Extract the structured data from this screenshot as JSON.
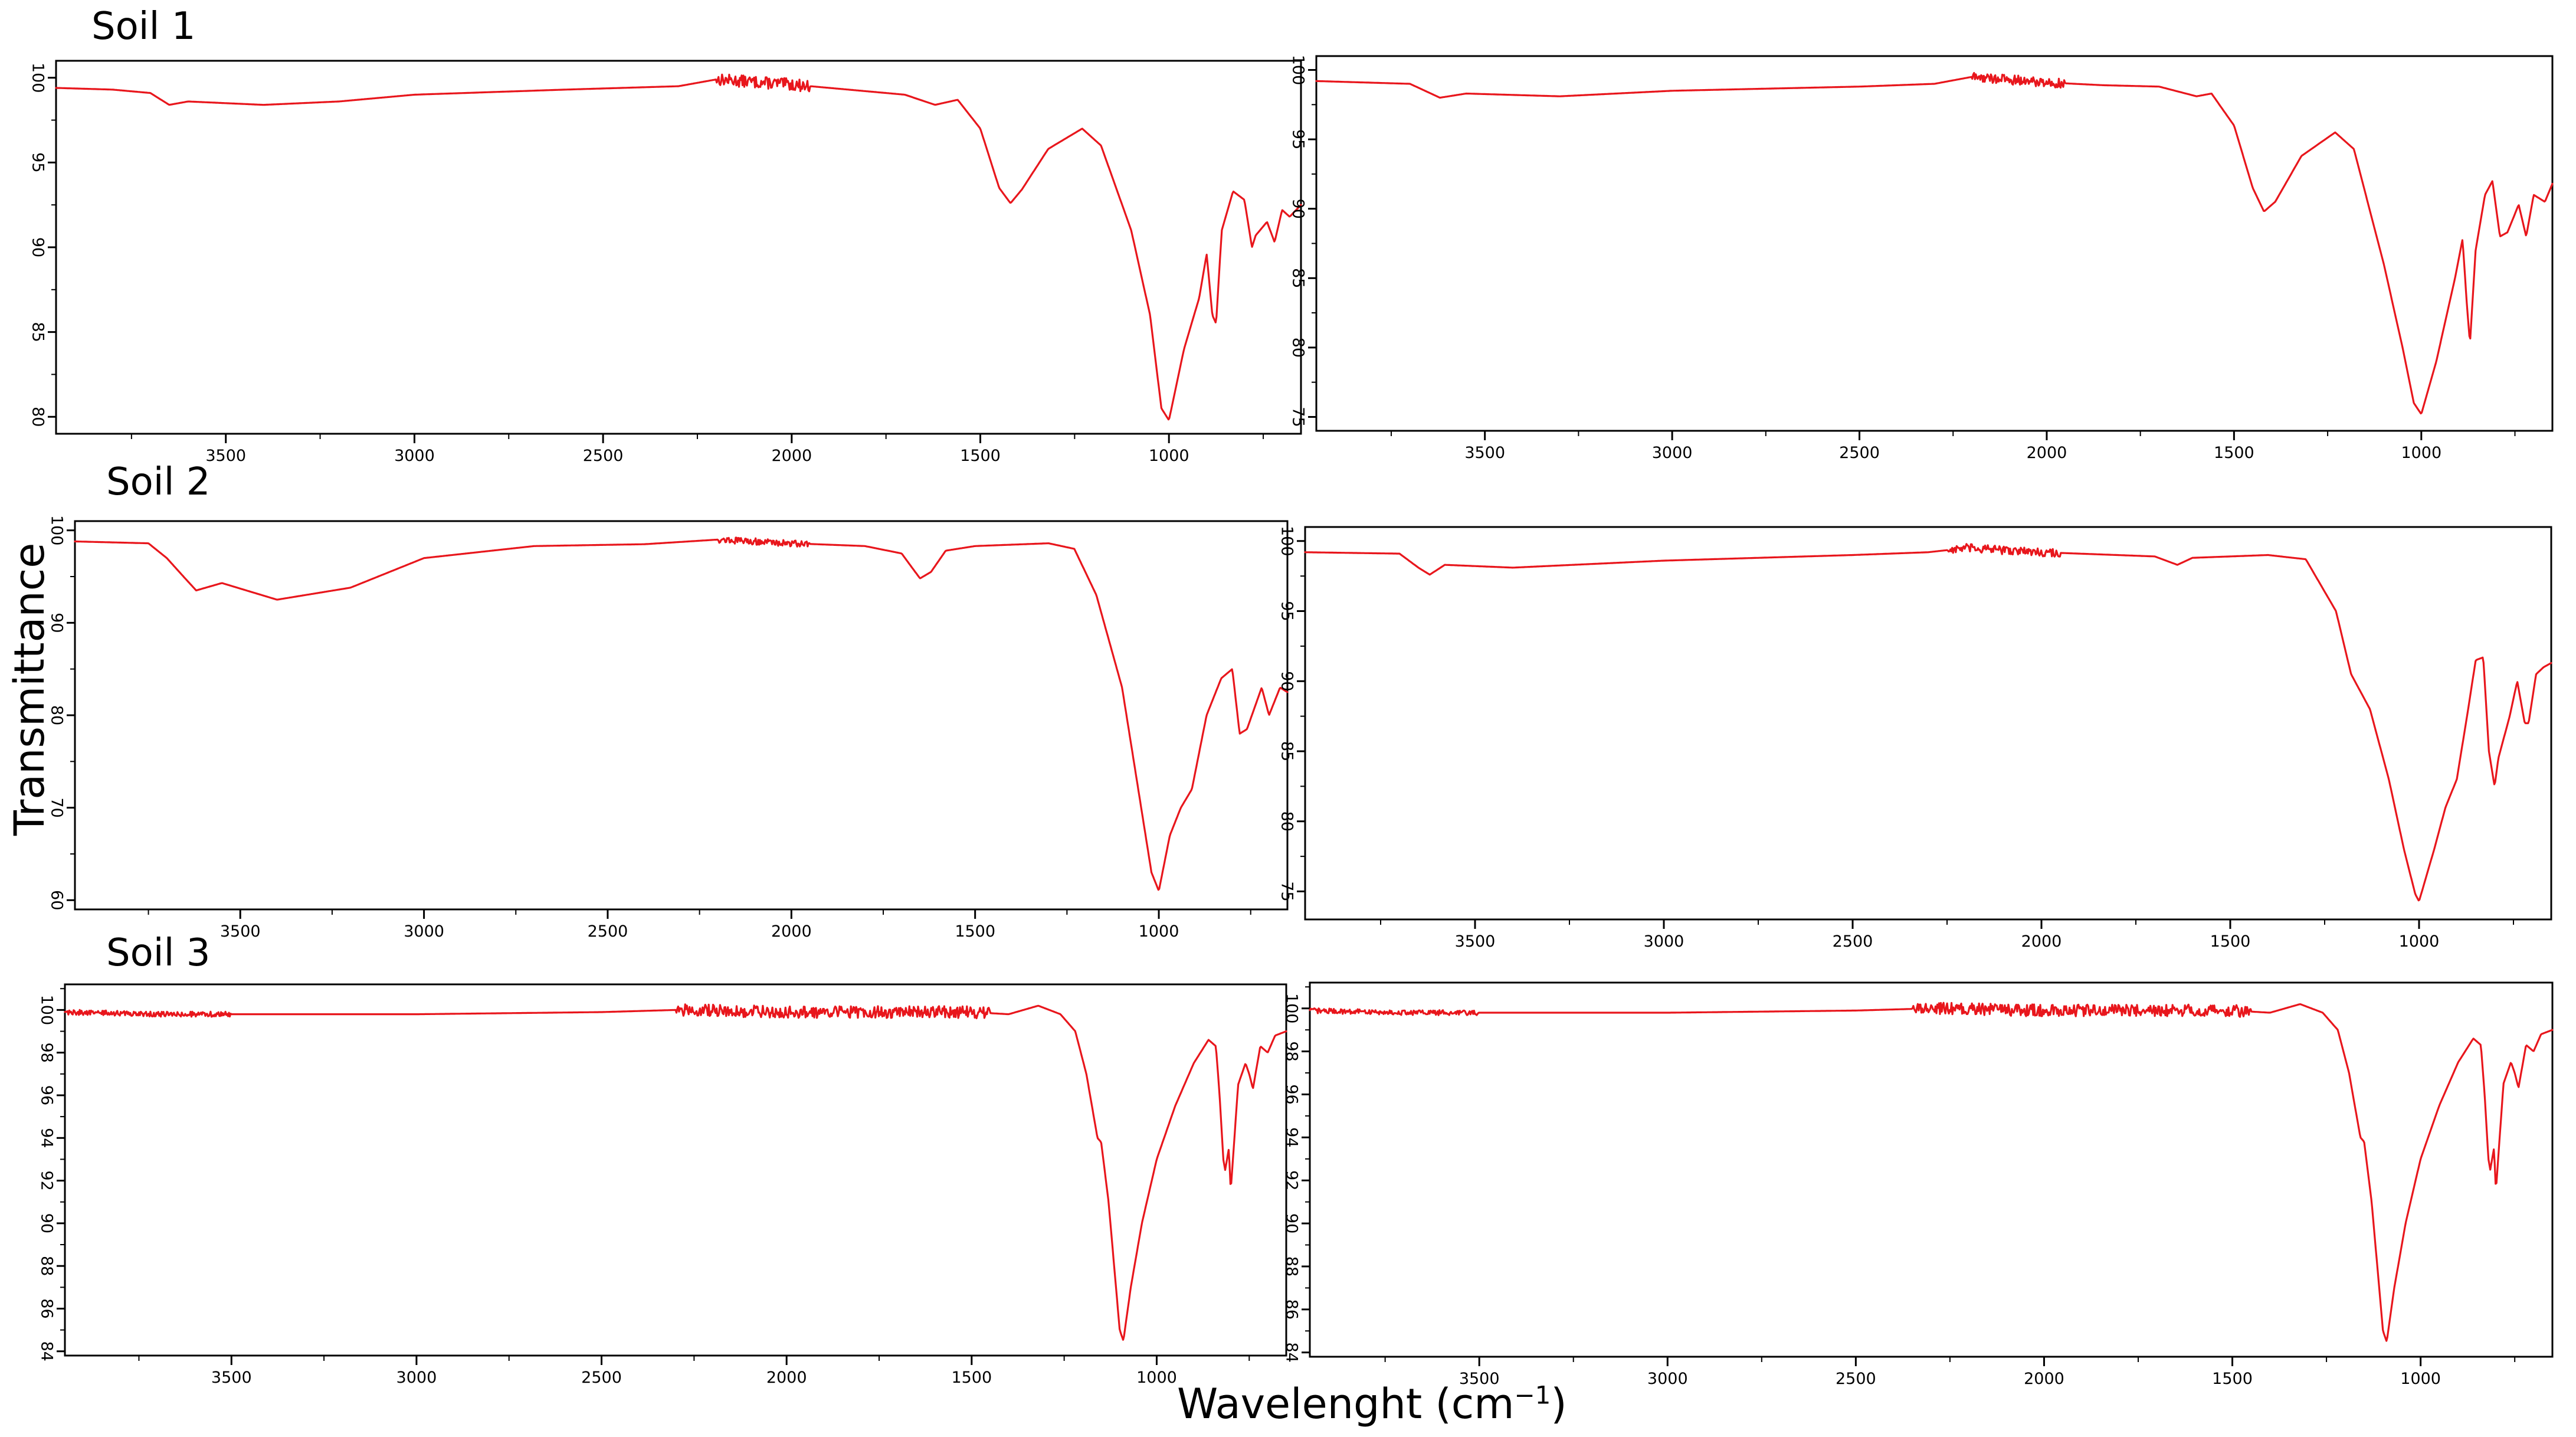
{
  "figure": {
    "y_axis_title": "Transmittance",
    "x_axis_title_main": "Wavelenght (cm",
    "x_axis_title_sup": "−1",
    "x_axis_title_close": ")",
    "row_labels": [
      "Soil 1",
      "Soil 2",
      "Soil 3"
    ]
  },
  "colors": {
    "trace": "#e8161c",
    "axis": "#000000",
    "background": "#ffffff"
  },
  "chart_data": [
    {
      "type": "line",
      "row": "Soil 1",
      "xlim": [
        3950,
        650
      ],
      "ylim": [
        79,
        101
      ],
      "xticks": [
        3500,
        3000,
        2500,
        2000,
        1500,
        1000
      ],
      "yticks": [
        80,
        85,
        90,
        95,
        100
      ],
      "grid": false,
      "noise": [
        [
          1,
          2200,
          1950,
          0.35
        ]
      ],
      "points": [
        [
          3950,
          99.4
        ],
        [
          3800,
          99.3
        ],
        [
          3700,
          99.1
        ],
        [
          3650,
          98.4
        ],
        [
          3600,
          98.6
        ],
        [
          3400,
          98.4
        ],
        [
          3200,
          98.6
        ],
        [
          3000,
          99.0
        ],
        [
          2600,
          99.3
        ],
        [
          2300,
          99.5
        ],
        [
          2200,
          99.9
        ],
        [
          2000,
          99.6
        ],
        [
          1850,
          99.3
        ],
        [
          1700,
          99.0
        ],
        [
          1620,
          98.4
        ],
        [
          1560,
          98.7
        ],
        [
          1500,
          97.0
        ],
        [
          1450,
          93.5
        ],
        [
          1420,
          92.6
        ],
        [
          1390,
          93.4
        ],
        [
          1320,
          95.8
        ],
        [
          1230,
          97.0
        ],
        [
          1180,
          96.0
        ],
        [
          1100,
          91.0
        ],
        [
          1050,
          86.0
        ],
        [
          1020,
          80.5
        ],
        [
          1000,
          79.8
        ],
        [
          960,
          84.0
        ],
        [
          920,
          87.0
        ],
        [
          900,
          89.6
        ],
        [
          885,
          86.0
        ],
        [
          875,
          85.5
        ],
        [
          860,
          91.0
        ],
        [
          830,
          93.3
        ],
        [
          800,
          92.8
        ],
        [
          780,
          90.0
        ],
        [
          770,
          90.7
        ],
        [
          740,
          91.5
        ],
        [
          720,
          90.3
        ],
        [
          700,
          92.2
        ],
        [
          680,
          91.8
        ],
        [
          650,
          92.5
        ]
      ]
    },
    {
      "type": "line",
      "row": "Soil 1",
      "xlim": [
        3950,
        650
      ],
      "ylim": [
        74,
        101
      ],
      "xticks": [
        3500,
        3000,
        2500,
        2000,
        1500,
        1000
      ],
      "yticks": [
        75,
        80,
        85,
        90,
        95,
        100
      ],
      "grid": false,
      "noise": [
        [
          1,
          2200,
          1950,
          0.35
        ]
      ],
      "points": [
        [
          3950,
          99.2
        ],
        [
          3700,
          99.0
        ],
        [
          3620,
          98.0
        ],
        [
          3550,
          98.3
        ],
        [
          3300,
          98.1
        ],
        [
          3000,
          98.5
        ],
        [
          2500,
          98.8
        ],
        [
          2300,
          99.0
        ],
        [
          2200,
          99.5
        ],
        [
          2000,
          99.1
        ],
        [
          1850,
          98.9
        ],
        [
          1700,
          98.8
        ],
        [
          1600,
          98.1
        ],
        [
          1560,
          98.3
        ],
        [
          1500,
          96.0
        ],
        [
          1450,
          91.5
        ],
        [
          1420,
          89.8
        ],
        [
          1390,
          90.5
        ],
        [
          1320,
          93.8
        ],
        [
          1230,
          95.5
        ],
        [
          1180,
          94.3
        ],
        [
          1100,
          86.0
        ],
        [
          1050,
          80.0
        ],
        [
          1020,
          76.0
        ],
        [
          1000,
          75.2
        ],
        [
          960,
          79.0
        ],
        [
          910,
          85.0
        ],
        [
          890,
          87.8
        ],
        [
          878,
          83.0
        ],
        [
          870,
          80.3
        ],
        [
          855,
          87.0
        ],
        [
          830,
          91.0
        ],
        [
          810,
          92.0
        ],
        [
          790,
          88.0
        ],
        [
          770,
          88.3
        ],
        [
          740,
          90.3
        ],
        [
          720,
          88.0
        ],
        [
          700,
          91.0
        ],
        [
          670,
          90.5
        ],
        [
          650,
          91.8
        ]
      ]
    },
    {
      "type": "line",
      "row": "Soil 2",
      "xlim": [
        3950,
        650
      ],
      "ylim": [
        59,
        101
      ],
      "xticks": [
        3500,
        3000,
        2500,
        2000,
        1500,
        1000
      ],
      "yticks": [
        60,
        70,
        80,
        90,
        100
      ],
      "grid": false,
      "noise": [
        [
          1,
          2200,
          1950,
          0.35
        ]
      ],
      "points": [
        [
          3950,
          98.8
        ],
        [
          3750,
          98.6
        ],
        [
          3700,
          97.0
        ],
        [
          3650,
          94.8
        ],
        [
          3620,
          93.5
        ],
        [
          3550,
          94.3
        ],
        [
          3400,
          92.5
        ],
        [
          3200,
          93.8
        ],
        [
          3000,
          97.0
        ],
        [
          2700,
          98.3
        ],
        [
          2400,
          98.5
        ],
        [
          2200,
          99.0
        ],
        [
          2000,
          98.6
        ],
        [
          1800,
          98.3
        ],
        [
          1700,
          97.5
        ],
        [
          1650,
          94.8
        ],
        [
          1620,
          95.5
        ],
        [
          1580,
          97.8
        ],
        [
          1500,
          98.3
        ],
        [
          1300,
          98.6
        ],
        [
          1230,
          98.0
        ],
        [
          1170,
          93.0
        ],
        [
          1100,
          83.0
        ],
        [
          1060,
          73.0
        ],
        [
          1020,
          63.0
        ],
        [
          1000,
          61.0
        ],
        [
          970,
          67.0
        ],
        [
          940,
          70.0
        ],
        [
          910,
          72.0
        ],
        [
          870,
          80.0
        ],
        [
          830,
          84.0
        ],
        [
          800,
          85.0
        ],
        [
          780,
          78.0
        ],
        [
          760,
          78.5
        ],
        [
          720,
          83.0
        ],
        [
          700,
          80.0
        ],
        [
          670,
          83.0
        ],
        [
          650,
          82.5
        ]
      ]
    },
    {
      "type": "line",
      "row": "Soil 2",
      "xlim": [
        3950,
        650
      ],
      "ylim": [
        73,
        101
      ],
      "xticks": [
        3500,
        3000,
        2500,
        2000,
        1500,
        1000
      ],
      "yticks": [
        75,
        80,
        85,
        90,
        95,
        100
      ],
      "grid": false,
      "noise": [
        [
          1,
          2250,
          1950,
          0.3
        ]
      ],
      "points": [
        [
          3950,
          99.2
        ],
        [
          3700,
          99.1
        ],
        [
          3650,
          98.1
        ],
        [
          3620,
          97.6
        ],
        [
          3580,
          98.3
        ],
        [
          3400,
          98.1
        ],
        [
          3000,
          98.6
        ],
        [
          2500,
          99.0
        ],
        [
          2300,
          99.2
        ],
        [
          2200,
          99.5
        ],
        [
          2000,
          99.2
        ],
        [
          1800,
          99.0
        ],
        [
          1700,
          98.9
        ],
        [
          1640,
          98.3
        ],
        [
          1600,
          98.8
        ],
        [
          1400,
          99.0
        ],
        [
          1300,
          98.7
        ],
        [
          1220,
          95.0
        ],
        [
          1180,
          90.5
        ],
        [
          1130,
          88.0
        ],
        [
          1080,
          83.0
        ],
        [
          1040,
          78.0
        ],
        [
          1010,
          74.8
        ],
        [
          1000,
          74.3
        ],
        [
          960,
          78.0
        ],
        [
          930,
          81.0
        ],
        [
          900,
          83.0
        ],
        [
          870,
          88.0
        ],
        [
          850,
          91.5
        ],
        [
          830,
          91.7
        ],
        [
          815,
          85.0
        ],
        [
          800,
          82.5
        ],
        [
          790,
          84.5
        ],
        [
          760,
          87.5
        ],
        [
          740,
          90.0
        ],
        [
          720,
          87.0
        ],
        [
          710,
          87.0
        ],
        [
          690,
          90.5
        ],
        [
          670,
          91.0
        ],
        [
          650,
          91.3
        ]
      ]
    },
    {
      "type": "line",
      "row": "Soil 3",
      "xlim": [
        3950,
        650
      ],
      "ylim": [
        83.8,
        101.2
      ],
      "xticks": [
        3500,
        3000,
        2500,
        2000,
        1500,
        1000
      ],
      "yticks": [
        84,
        86,
        88,
        90,
        92,
        94,
        96,
        98,
        100
      ],
      "grid": false,
      "noise": [
        [
          1,
          3950,
          3500,
          0.12
        ],
        [
          2,
          2300,
          1450,
          0.28
        ]
      ],
      "points": [
        [
          3950,
          99.9
        ],
        [
          3700,
          99.8
        ],
        [
          3500,
          99.8
        ],
        [
          3000,
          99.8
        ],
        [
          2500,
          99.9
        ],
        [
          2300,
          100.0
        ],
        [
          2000,
          99.9
        ],
        [
          1500,
          99.9
        ],
        [
          1400,
          99.8
        ],
        [
          1320,
          100.2
        ],
        [
          1260,
          99.8
        ],
        [
          1220,
          99.0
        ],
        [
          1190,
          97.0
        ],
        [
          1170,
          95.0
        ],
        [
          1160,
          94.0
        ],
        [
          1150,
          93.8
        ],
        [
          1130,
          91.0
        ],
        [
          1100,
          85.0
        ],
        [
          1090,
          84.5
        ],
        [
          1070,
          87.0
        ],
        [
          1040,
          90.0
        ],
        [
          1000,
          93.0
        ],
        [
          950,
          95.5
        ],
        [
          900,
          97.5
        ],
        [
          860,
          98.6
        ],
        [
          840,
          98.3
        ],
        [
          830,
          96.0
        ],
        [
          820,
          93.0
        ],
        [
          815,
          92.5
        ],
        [
          805,
          93.5
        ],
        [
          800,
          91.5
        ],
        [
          790,
          94.0
        ],
        [
          780,
          96.5
        ],
        [
          760,
          97.5
        ],
        [
          750,
          97.0
        ],
        [
          740,
          96.3
        ],
        [
          720,
          98.3
        ],
        [
          700,
          98.0
        ],
        [
          680,
          98.8
        ],
        [
          650,
          99.0
        ]
      ]
    },
    {
      "type": "line",
      "row": "Soil 3",
      "xlim": [
        3950,
        650
      ],
      "ylim": [
        83.8,
        101.2
      ],
      "xticks": [
        3500,
        3000,
        2500,
        2000,
        1500,
        1000
      ],
      "yticks": [
        84,
        86,
        88,
        90,
        92,
        94,
        96,
        98,
        100
      ],
      "grid": false,
      "noise": [
        [
          1,
          3950,
          3500,
          0.12
        ],
        [
          2,
          2350,
          1450,
          0.28
        ]
      ],
      "points": [
        [
          3950,
          99.9
        ],
        [
          3700,
          99.8
        ],
        [
          3500,
          99.8
        ],
        [
          3000,
          99.8
        ],
        [
          2500,
          99.9
        ],
        [
          2300,
          100.0
        ],
        [
          2000,
          99.9
        ],
        [
          1500,
          99.9
        ],
        [
          1400,
          99.8
        ],
        [
          1320,
          100.2
        ],
        [
          1260,
          99.8
        ],
        [
          1220,
          99.0
        ],
        [
          1190,
          97.0
        ],
        [
          1170,
          95.0
        ],
        [
          1160,
          94.0
        ],
        [
          1150,
          93.8
        ],
        [
          1130,
          91.0
        ],
        [
          1100,
          85.0
        ],
        [
          1090,
          84.5
        ],
        [
          1070,
          87.0
        ],
        [
          1040,
          90.0
        ],
        [
          1000,
          93.0
        ],
        [
          950,
          95.5
        ],
        [
          900,
          97.5
        ],
        [
          860,
          98.6
        ],
        [
          840,
          98.3
        ],
        [
          830,
          96.0
        ],
        [
          820,
          93.0
        ],
        [
          815,
          92.5
        ],
        [
          805,
          93.5
        ],
        [
          800,
          91.5
        ],
        [
          790,
          94.0
        ],
        [
          780,
          96.5
        ],
        [
          760,
          97.5
        ],
        [
          750,
          97.0
        ],
        [
          740,
          96.3
        ],
        [
          720,
          98.3
        ],
        [
          700,
          98.0
        ],
        [
          680,
          98.8
        ],
        [
          650,
          99.0
        ]
      ]
    }
  ]
}
